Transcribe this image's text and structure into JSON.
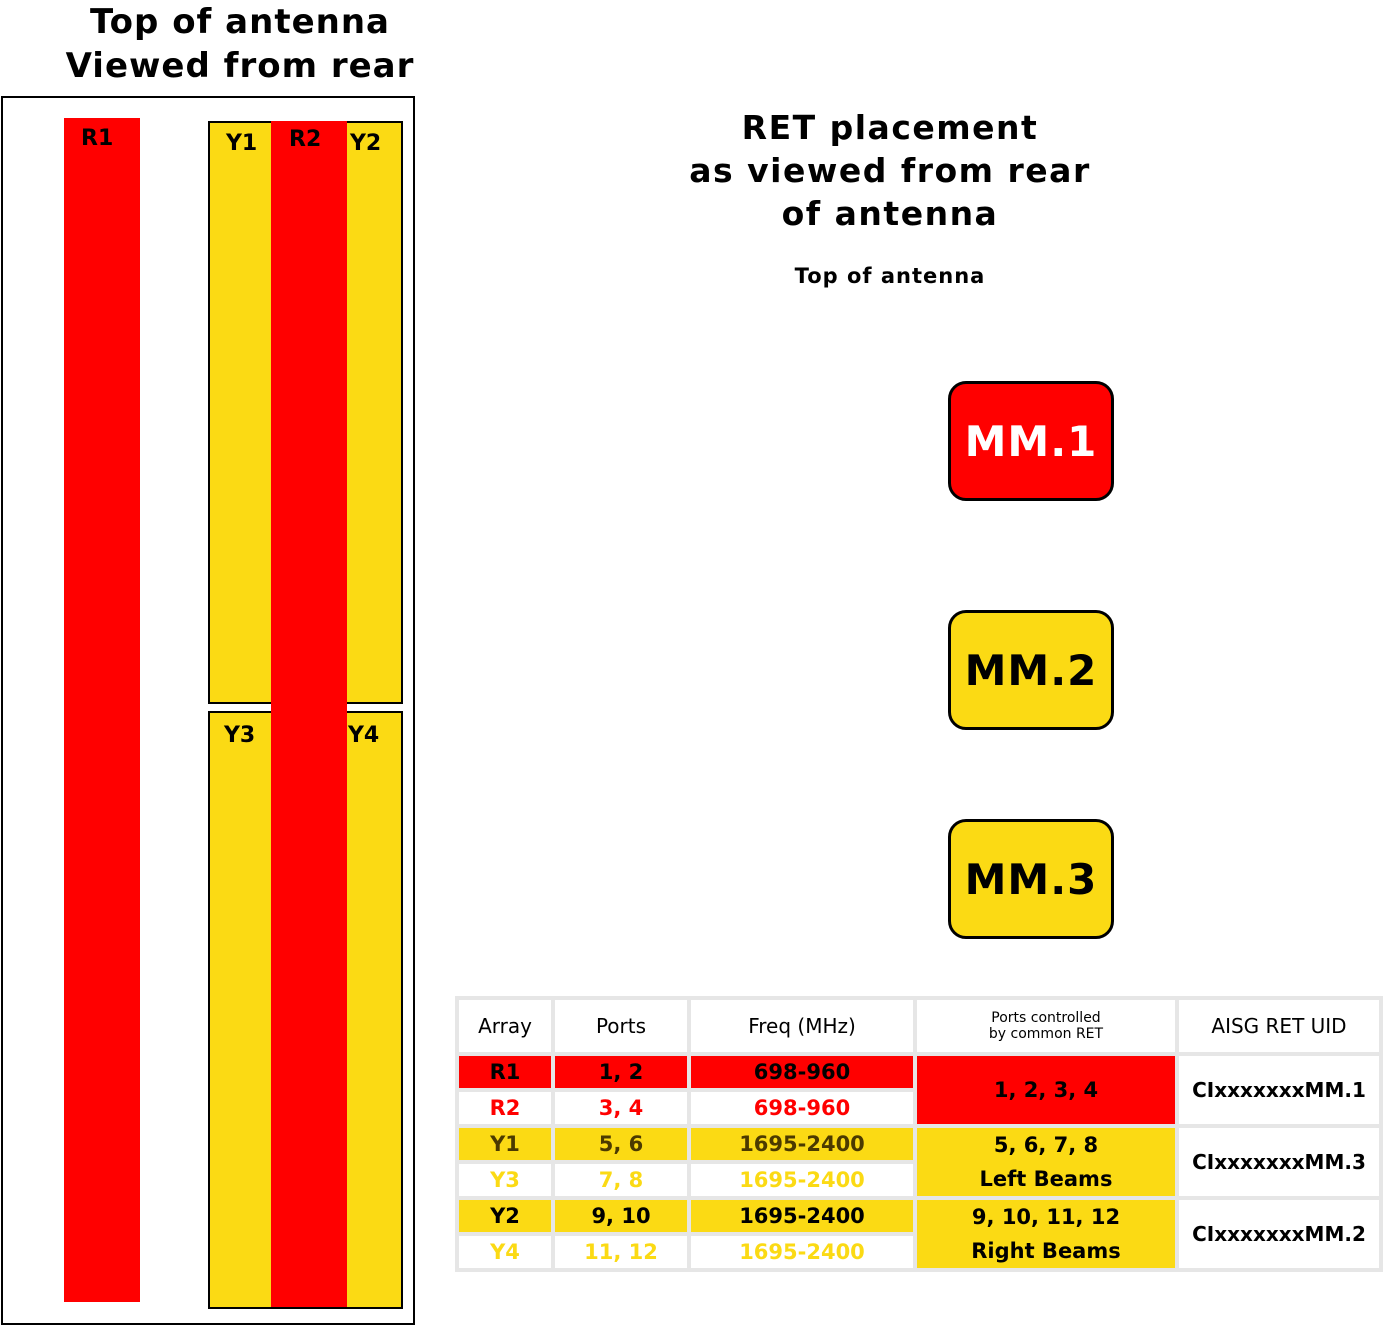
{
  "left_title": {
    "line1": "Top of antenna",
    "line2": "Viewed from rear"
  },
  "right_title": {
    "line1": "RET placement",
    "line2": "as viewed from rear",
    "line3": "of antenna"
  },
  "right_subtitle": "Top of antenna",
  "arrays": {
    "R1": "R1",
    "R2": "R2",
    "Y1": "Y1",
    "Y2": "Y2",
    "Y3": "Y3",
    "Y4": "Y4"
  },
  "rets": [
    {
      "label": "MM.1",
      "color": "#ff0000"
    },
    {
      "label": "MM.2",
      "color": "#fbda14"
    },
    {
      "label": "MM.3",
      "color": "#fbda14"
    }
  ],
  "colors": {
    "red": "#ff0000",
    "yellow": "#fbda14",
    "border": "#000000"
  },
  "table": {
    "headers": [
      "Array",
      "Ports",
      "Freq (MHz)",
      "Ports controlled by common RET",
      "AISG RET UID"
    ],
    "header_ports_controlled": {
      "line1": "Ports controlled",
      "line2": "by common RET"
    },
    "rows": [
      {
        "array": "R1",
        "ports": "1, 2",
        "freq": "698-960"
      },
      {
        "array": "R2",
        "ports": "3, 4",
        "freq": "698-960"
      },
      {
        "array": "Y1",
        "ports": "5, 6",
        "freq": "1695-2400"
      },
      {
        "array": "Y3",
        "ports": "7, 8",
        "freq": "1695-2400"
      },
      {
        "array": "Y2",
        "ports": "9, 10",
        "freq": "1695-2400"
      },
      {
        "array": "Y4",
        "ports": "11, 12",
        "freq": "1695-2400"
      }
    ],
    "groups": [
      {
        "controlled": "1, 2, 3, 4",
        "beams": "",
        "uid": "CIxxxxxxxMM.1"
      },
      {
        "controlled": "5, 6, 7, 8",
        "beams": "Left Beams",
        "uid": "CIxxxxxxxMM.3"
      },
      {
        "controlled": "9, 10, 11, 12",
        "beams": "Right Beams",
        "uid": "CIxxxxxxxMM.2"
      }
    ]
  }
}
